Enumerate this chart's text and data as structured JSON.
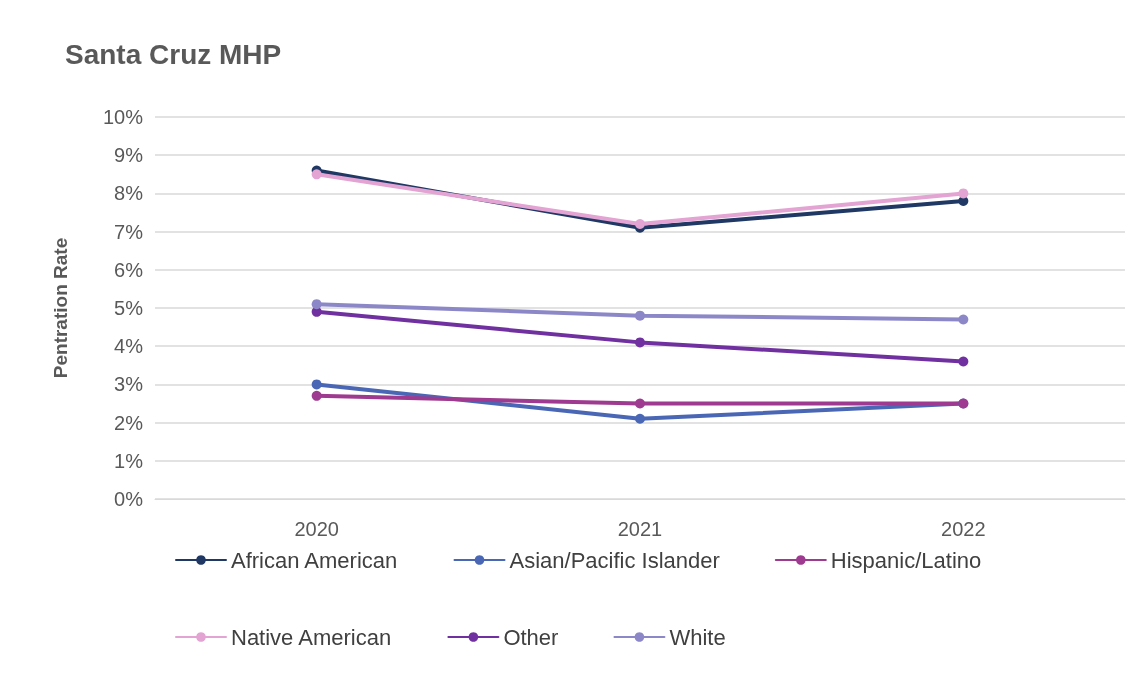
{
  "chart_data": {
    "type": "line",
    "title": "Santa Cruz MHP",
    "ylabel": "Pentration Rate",
    "categories": [
      "2020",
      "2021",
      "2022"
    ],
    "series": [
      {
        "name": "African American",
        "color": "#1f3864",
        "values": [
          8.6,
          7.1,
          7.8
        ]
      },
      {
        "name": "Asian/Pacific Islander",
        "color": "#4a67b5",
        "values": [
          3.0,
          2.1,
          2.5
        ]
      },
      {
        "name": "Hispanic/Latino",
        "color": "#9e3a8f",
        "values": [
          2.7,
          2.5,
          2.5
        ]
      },
      {
        "name": "Native American",
        "color": "#e3a3d3",
        "values": [
          8.5,
          7.2,
          8.0
        ]
      },
      {
        "name": "Other",
        "color": "#7030a0",
        "values": [
          4.9,
          4.1,
          3.6
        ]
      },
      {
        "name": "White",
        "color": "#8c88c8",
        "values": [
          5.1,
          4.8,
          4.7
        ]
      }
    ],
    "ylim": [
      0,
      10
    ],
    "yticks": [
      {
        "value": 0,
        "label": "0%"
      },
      {
        "value": 1,
        "label": "1%"
      },
      {
        "value": 2,
        "label": "2%"
      },
      {
        "value": 3,
        "label": "3%"
      },
      {
        "value": 4,
        "label": "4%"
      },
      {
        "value": 5,
        "label": "5%"
      },
      {
        "value": 6,
        "label": "6%"
      },
      {
        "value": 7,
        "label": "7%"
      },
      {
        "value": 8,
        "label": "8%"
      },
      {
        "value": 9,
        "label": "9%"
      },
      {
        "value": 10,
        "label": "10%"
      }
    ],
    "grid": "y",
    "legend": "bottom",
    "marker": "circle",
    "line_style": "solid"
  }
}
